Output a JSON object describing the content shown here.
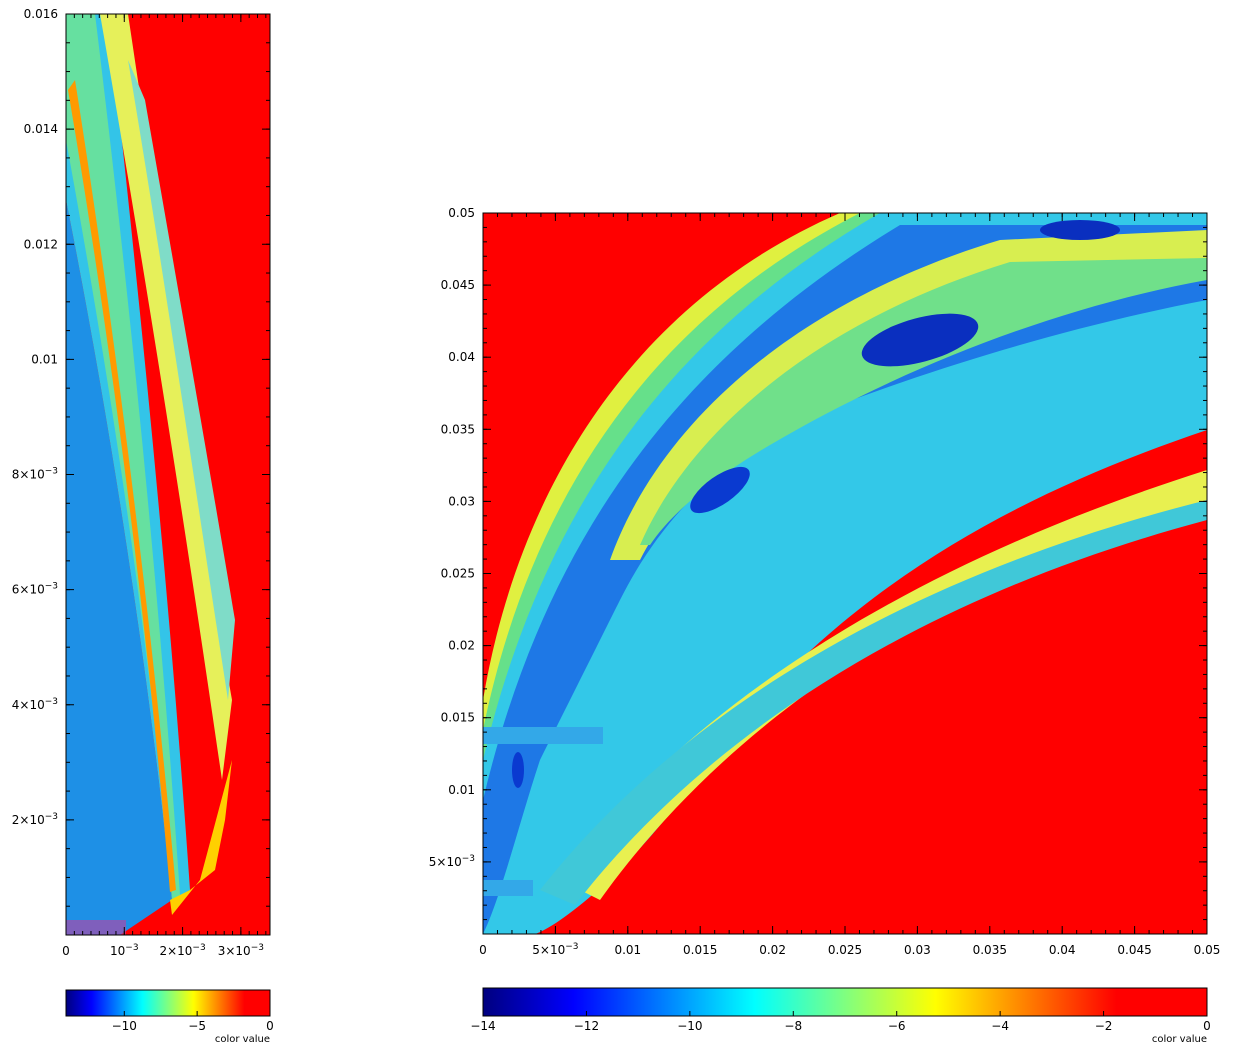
{
  "chart_data": [
    {
      "type": "heatmap",
      "xlim": [
        0,
        0.0035
      ],
      "ylim": [
        0,
        0.016
      ],
      "x_ticks": [
        {
          "value": 0,
          "label": "0"
        },
        {
          "value": 0.001,
          "label": "10",
          "exp": "−3"
        },
        {
          "value": 0.002,
          "label": "2×10",
          "exp": "−3"
        },
        {
          "value": 0.003,
          "label": "3×10",
          "exp": "−3"
        }
      ],
      "y_ticks": [
        {
          "value": 0.002,
          "label": "2×10",
          "exp": "−3"
        },
        {
          "value": 0.004,
          "label": "4×10",
          "exp": "−3"
        },
        {
          "value": 0.006,
          "label": "6×10",
          "exp": "−3"
        },
        {
          "value": 0.008,
          "label": "8×10",
          "exp": "−3"
        },
        {
          "value": 0.01,
          "label": "0.01"
        },
        {
          "value": 0.012,
          "label": "0.012"
        },
        {
          "value": 0.014,
          "label": "0.014"
        },
        {
          "value": 0.016,
          "label": "0.016"
        }
      ],
      "colorbar": {
        "range": [
          -14,
          0
        ],
        "ticks": [
          {
            "value": -10,
            "label": "−10"
          },
          {
            "value": -5,
            "label": "−5"
          },
          {
            "value": 0,
            "label": "0"
          }
        ],
        "label": "color value"
      }
    },
    {
      "type": "heatmap",
      "xlim": [
        0,
        0.05
      ],
      "ylim": [
        0,
        0.05
      ],
      "x_ticks": [
        {
          "value": 0,
          "label": "0"
        },
        {
          "value": 0.005,
          "label": "5×10",
          "exp": "−3"
        },
        {
          "value": 0.01,
          "label": "0.01"
        },
        {
          "value": 0.015,
          "label": "0.015"
        },
        {
          "value": 0.02,
          "label": "0.02"
        },
        {
          "value": 0.025,
          "label": "0.025"
        },
        {
          "value": 0.03,
          "label": "0.03"
        },
        {
          "value": 0.035,
          "label": "0.035"
        },
        {
          "value": 0.04,
          "label": "0.04"
        },
        {
          "value": 0.045,
          "label": "0.045"
        },
        {
          "value": 0.05,
          "label": "0.05"
        }
      ],
      "y_ticks": [
        {
          "value": 0.005,
          "label": "5×10",
          "exp": "−3"
        },
        {
          "value": 0.01,
          "label": "0.01"
        },
        {
          "value": 0.015,
          "label": "0.015"
        },
        {
          "value": 0.02,
          "label": "0.02"
        },
        {
          "value": 0.025,
          "label": "0.025"
        },
        {
          "value": 0.03,
          "label": "0.03"
        },
        {
          "value": 0.035,
          "label": "0.035"
        },
        {
          "value": 0.04,
          "label": "0.04"
        },
        {
          "value": 0.045,
          "label": "0.045"
        },
        {
          "value": 0.05,
          "label": "0.05"
        }
      ],
      "colorbar": {
        "range": [
          -14,
          0
        ],
        "ticks": [
          {
            "value": -14,
            "label": "−14"
          },
          {
            "value": -12,
            "label": "−12"
          },
          {
            "value": -10,
            "label": "−10"
          },
          {
            "value": -8,
            "label": "−8"
          },
          {
            "value": -6,
            "label": "−6"
          },
          {
            "value": -4,
            "label": "−4"
          },
          {
            "value": -2,
            "label": "−2"
          },
          {
            "value": 0,
            "label": "0"
          }
        ],
        "label": "color value"
      }
    }
  ],
  "colormap": [
    "#00008f",
    "#0000ff",
    "#00ffff",
    "#ffff00",
    "#ff0000"
  ],
  "background_color": "#ff0000"
}
